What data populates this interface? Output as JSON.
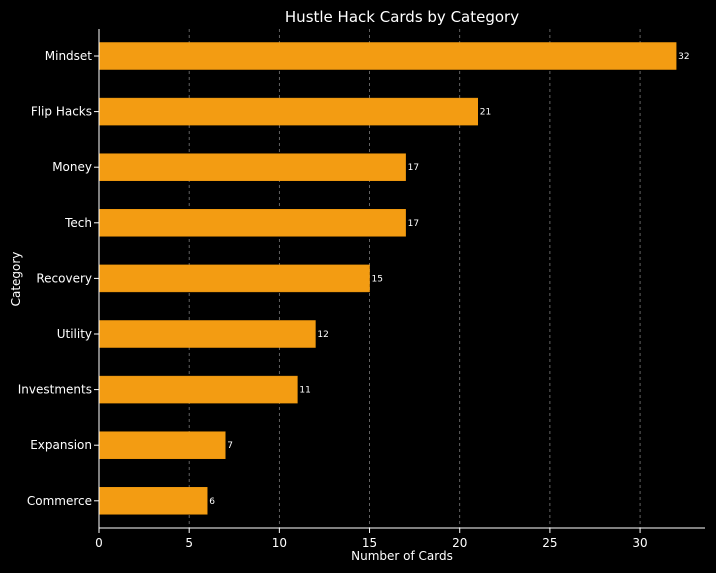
{
  "chart_data": {
    "type": "bar",
    "orientation": "horizontal",
    "title": "Hustle Hack Cards by Category",
    "xlabel": "Number of Cards",
    "ylabel": "Category",
    "categories": [
      "Mindset",
      "Flip Hacks",
      "Money",
      "Tech",
      "Recovery",
      "Utility",
      "Investments",
      "Expansion",
      "Commerce"
    ],
    "values": [
      32,
      21,
      17,
      17,
      15,
      12,
      11,
      7,
      6
    ],
    "xlim": [
      0,
      33.6
    ],
    "xticks": [
      0,
      5,
      10,
      15,
      20,
      25,
      30
    ],
    "grid": "vertical-dashed",
    "legend": "none",
    "data_labels": [
      "32",
      "21",
      "17",
      "17",
      "15",
      "12",
      "11",
      "7",
      "6"
    ],
    "colors": {
      "bar": "#f39c12",
      "background": "#000000",
      "text": "#ffffff",
      "grid": "#7a7a7a"
    }
  }
}
